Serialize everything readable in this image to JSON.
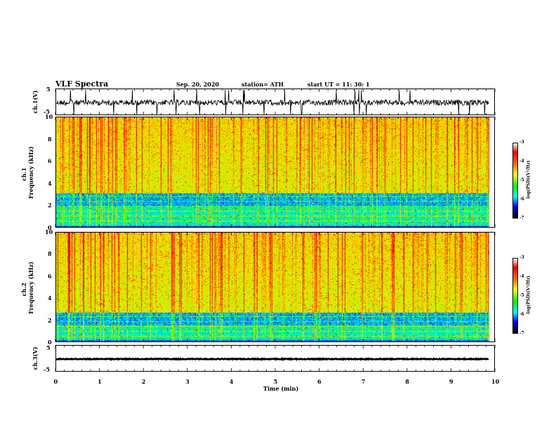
{
  "header": {
    "title": "VLF Spectra",
    "date": "Sep. 20, 2020",
    "station": "station= ATH",
    "start": "start  UT  =    11: 30: 1"
  },
  "chart_data": [
    {
      "type": "line",
      "panel": "ch1-waveform",
      "ylabel": "ch.1(V)",
      "ylim": [
        -5,
        5
      ],
      "yticks": [
        "5",
        "-5"
      ],
      "xlim": [
        0,
        10
      ]
    },
    {
      "type": "heatmap",
      "panel": "ch1-spectrogram",
      "ylabel": "ch.1\nFrequency (kHz)",
      "ylabel_lines": [
        "ch.1",
        "Frequency  (kHz)"
      ],
      "ylim": [
        0,
        10
      ],
      "yticks": [
        "0",
        "2",
        "4",
        "6",
        "8",
        "10"
      ],
      "xlim": [
        0,
        10
      ],
      "colorbar": {
        "label": "log(PSD)(V²/Hz)",
        "range": [
          -7,
          -3
        ],
        "ticks": [
          "-3",
          "-4",
          "-5",
          "-6",
          "-7"
        ]
      }
    },
    {
      "type": "heatmap",
      "panel": "ch2-spectrogram",
      "ylabel_lines": [
        "ch.2",
        "Frequency  (kHz)"
      ],
      "ylim": [
        0,
        10
      ],
      "yticks": [
        "0",
        "2",
        "4",
        "6",
        "8",
        "10"
      ],
      "xlim": [
        0,
        10
      ],
      "colorbar": {
        "label": "log(PSD)(V²/Hz)",
        "range": [
          -7,
          -3
        ],
        "ticks": [
          "-3",
          "-4",
          "-5",
          "-6",
          "-7"
        ]
      }
    },
    {
      "type": "line",
      "panel": "ch3-waveform",
      "ylabel": "ch.3(V)",
      "ylim": [
        -5,
        5
      ],
      "yticks": [
        "5",
        "-5"
      ],
      "xlim": [
        0,
        10
      ]
    }
  ],
  "xaxis": {
    "label": "Time  (min)",
    "ticks": [
      "0",
      "1",
      "2",
      "3",
      "4",
      "5",
      "6",
      "7",
      "8",
      "9",
      "10"
    ]
  },
  "colors": {
    "spectro_high": "#ff0000",
    "spectro_mid": "#ffd200",
    "spectro_low": "#00ff40",
    "spectro_floor": "#0000ff"
  }
}
